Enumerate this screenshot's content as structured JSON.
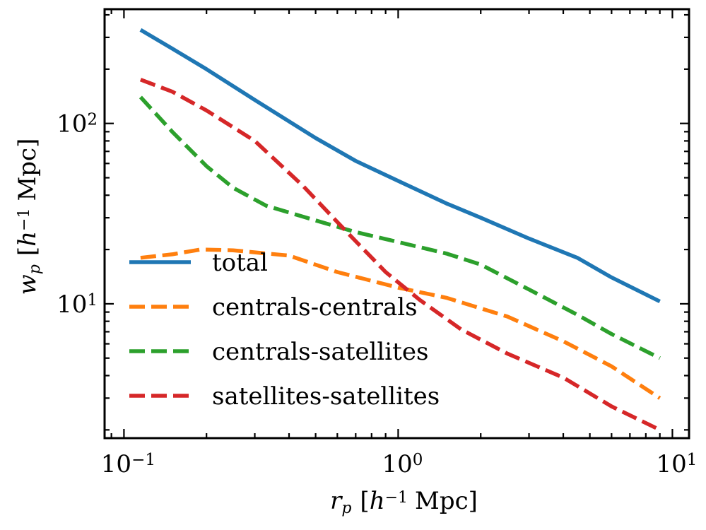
{
  "chart_data": {
    "type": "line",
    "x_scale": "log",
    "y_scale": "log",
    "xlim": [
      0.085,
      11.5
    ],
    "ylim": [
      1.8,
      430
    ],
    "xlabel": {
      "var": "r",
      "sub": "p",
      "unit_open": "[",
      "h": "h",
      "exp": "−1",
      "unit": "Mpc]"
    },
    "ylabel": {
      "var": "w",
      "sub": "p",
      "unit_open": "[",
      "h": "h",
      "exp": "−1",
      "unit": "Mpc]"
    },
    "x_ticks": [
      {
        "value": 0.1,
        "base": "10",
        "exp": "−1"
      },
      {
        "value": 1,
        "base": "10",
        "exp": "0"
      },
      {
        "value": 10,
        "base": "10",
        "exp": "1"
      }
    ],
    "y_ticks": [
      {
        "value": 10,
        "base": "10",
        "exp": "1"
      },
      {
        "value": 100,
        "base": "10",
        "exp": "2"
      }
    ],
    "legend_position": "lower-left",
    "series": [
      {
        "name": "total",
        "color": "#1f77b4",
        "style": "solid",
        "x": [
          0.115,
          0.15,
          0.2,
          0.3,
          0.5,
          0.7,
          1.0,
          1.5,
          2.0,
          3.0,
          4.5,
          6.0,
          9.0
        ],
        "y": [
          330,
          260,
          200,
          135,
          83,
          62,
          48,
          36,
          30,
          23,
          18,
          14,
          10.3
        ]
      },
      {
        "name": "centrals-centrals",
        "color": "#ff7f0e",
        "style": "dashed",
        "x": [
          0.115,
          0.15,
          0.19,
          0.25,
          0.4,
          0.6,
          1.0,
          1.5,
          2.5,
          4.0,
          6.0,
          9.0
        ],
        "y": [
          18,
          18.8,
          20,
          19.8,
          18.5,
          15,
          12.3,
          10.8,
          8.5,
          6.2,
          4.5,
          3.0
        ]
      },
      {
        "name": "centrals-satellites",
        "color": "#2ca02c",
        "style": "dashed",
        "x": [
          0.115,
          0.15,
          0.2,
          0.25,
          0.33,
          0.5,
          0.7,
          1.0,
          1.5,
          2.0,
          3.0,
          4.5,
          6.0,
          9.0
        ],
        "y": [
          140,
          90,
          58,
          44,
          35,
          29,
          25,
          22,
          19,
          16.5,
          12,
          8.7,
          6.8,
          5.0
        ]
      },
      {
        "name": "satellites-satellites",
        "color": "#d62728",
        "style": "dashed",
        "x": [
          0.115,
          0.15,
          0.2,
          0.3,
          0.45,
          0.65,
          0.9,
          1.2,
          1.7,
          2.5,
          4.0,
          6.0,
          9.0
        ],
        "y": [
          175,
          150,
          118,
          80,
          45,
          25,
          15,
          10.5,
          7.2,
          5.3,
          3.9,
          2.7,
          2.0
        ]
      }
    ]
  }
}
